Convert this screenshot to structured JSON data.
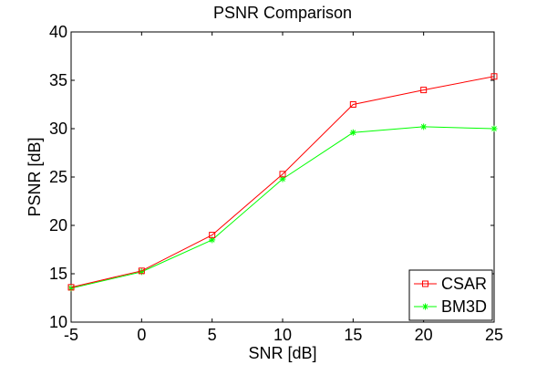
{
  "chart_data": {
    "type": "line",
    "title": "PSNR Comparison",
    "xlabel": "SNR [dB]",
    "ylabel": "PSNR [dB]",
    "x": [
      -5,
      0,
      5,
      10,
      15,
      20,
      25
    ],
    "xlim": [
      -5,
      25
    ],
    "ylim": [
      10,
      40
    ],
    "xticks": [
      -5,
      0,
      5,
      10,
      15,
      20,
      25
    ],
    "yticks": [
      10,
      15,
      20,
      25,
      30,
      35,
      40
    ],
    "grid": false,
    "legend_position": "bottom-right",
    "series": [
      {
        "name": "CSAR",
        "color": "#ff0000",
        "marker": "square",
        "values": [
          13.6,
          15.3,
          19.0,
          25.3,
          32.5,
          34.0,
          35.4
        ]
      },
      {
        "name": "BM3D",
        "color": "#00ff00",
        "marker": "asterisk",
        "values": [
          13.5,
          15.2,
          18.5,
          24.8,
          29.6,
          30.2,
          30.0
        ]
      }
    ]
  }
}
